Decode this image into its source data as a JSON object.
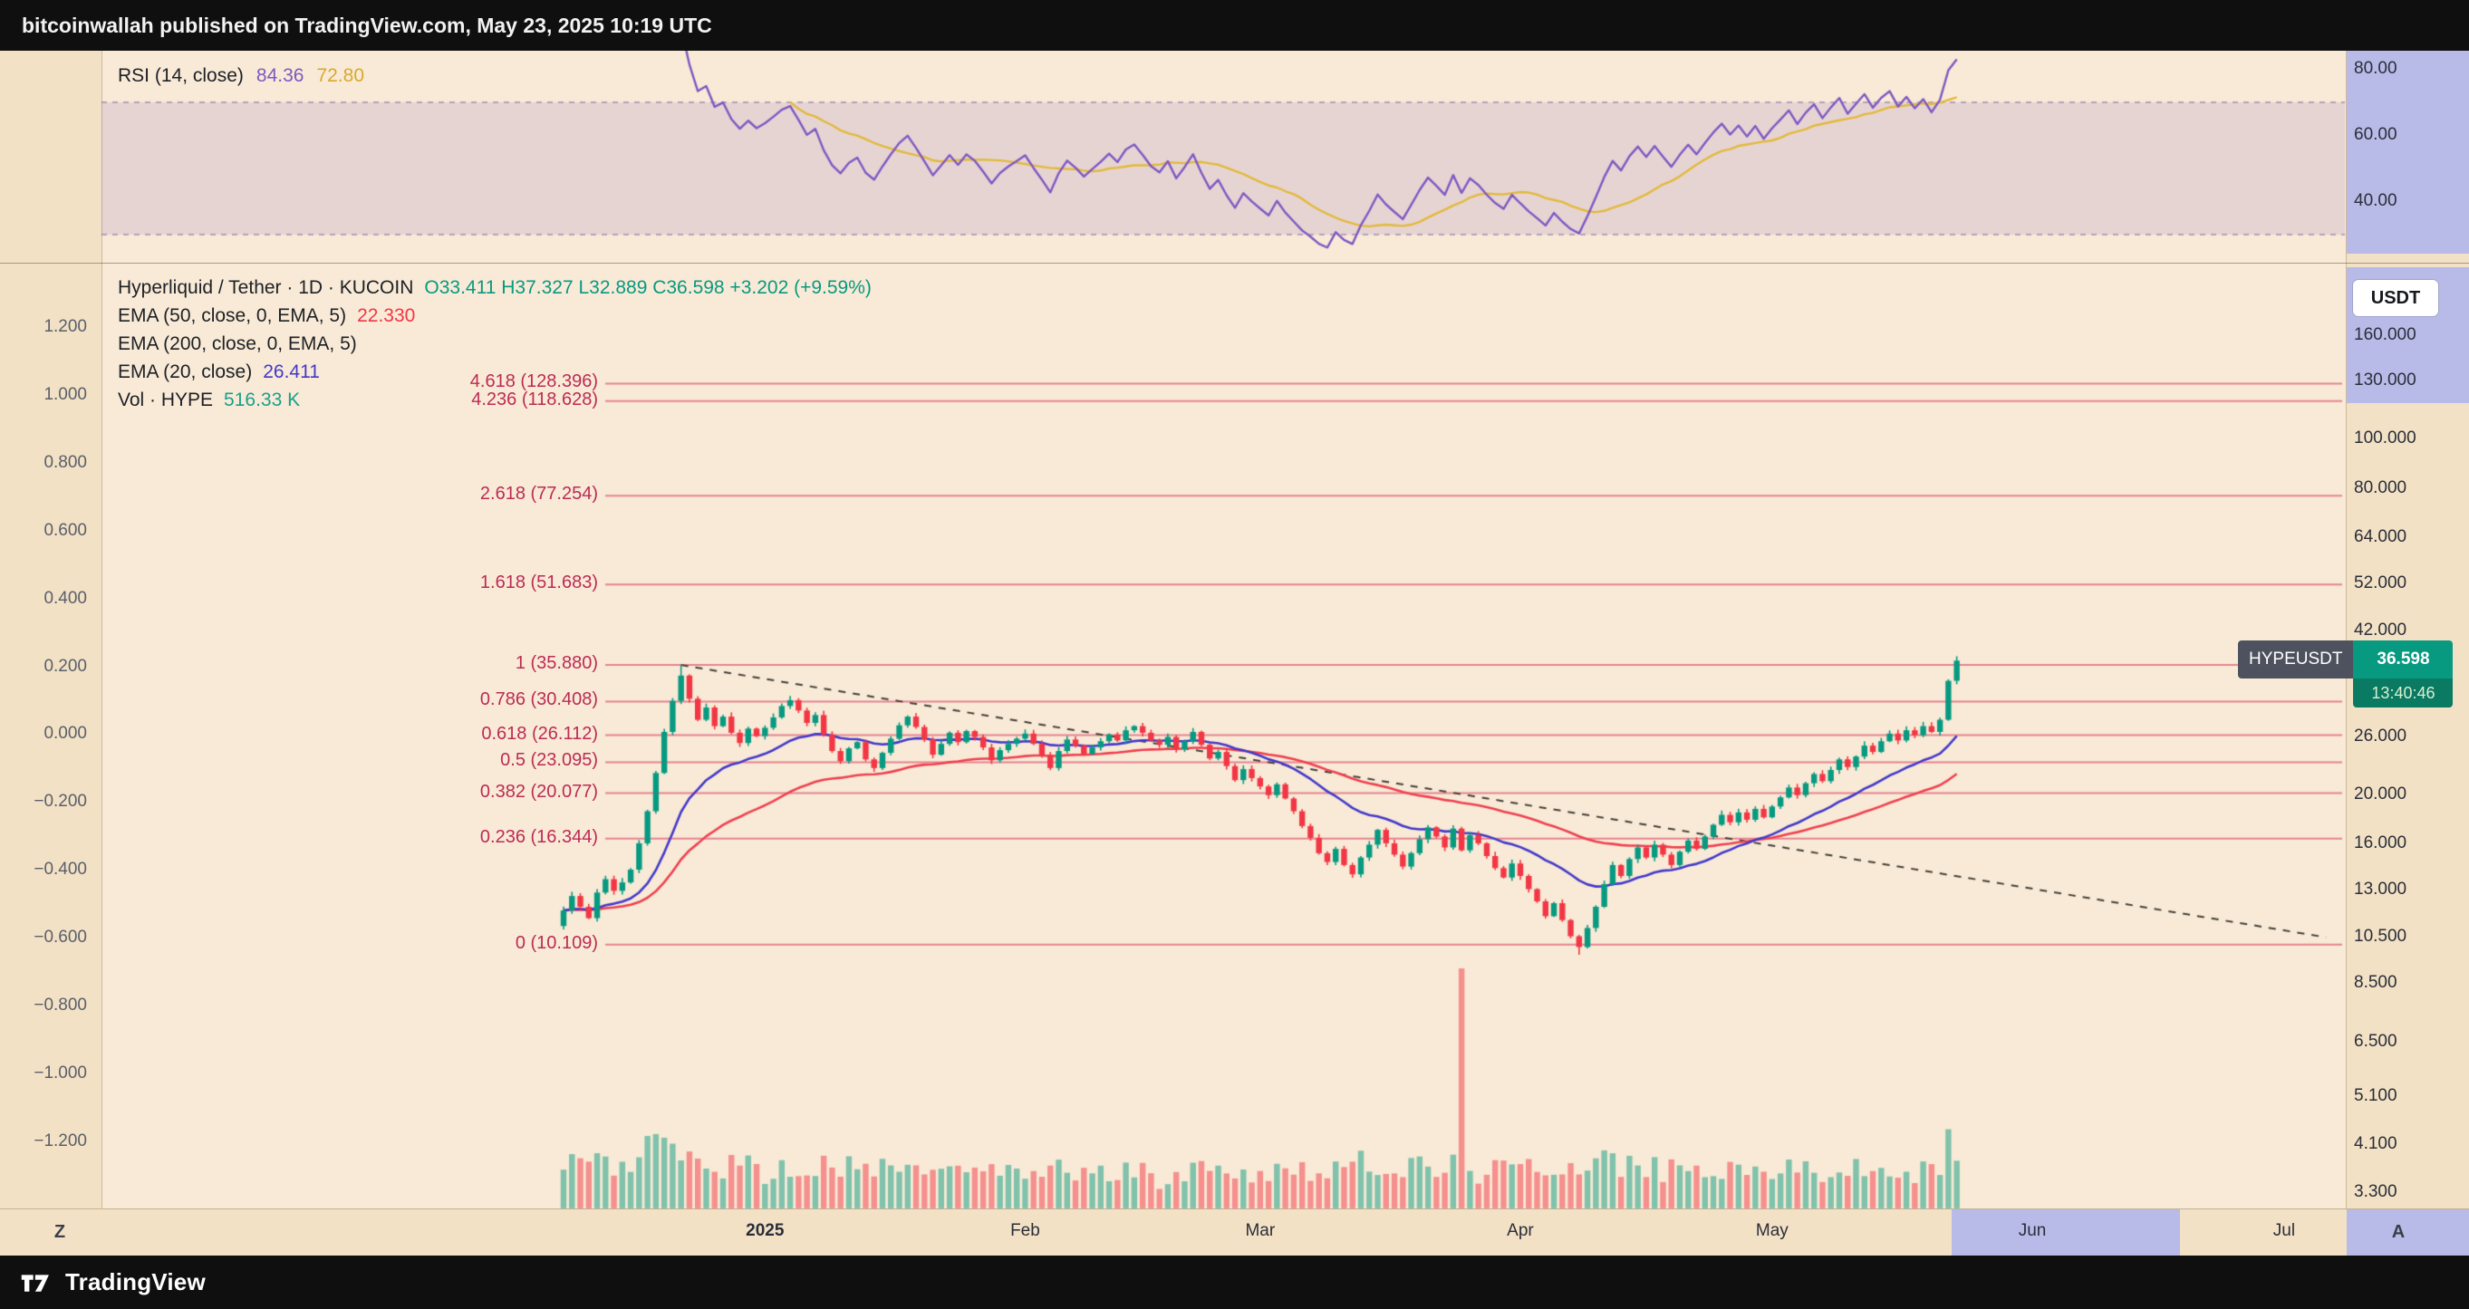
{
  "published_bar": {
    "text": "bitcoinwallah published on TradingView.com, May 23, 2025 10:19 UTC"
  },
  "footer": {
    "brand": "TradingView"
  },
  "rsi_pane": {
    "legend": {
      "title": "RSI (14, close)",
      "value": "84.36",
      "ma_value": "72.80"
    },
    "axis_labels": [
      {
        "text": "80.00",
        "value": 80
      },
      {
        "text": "60.00",
        "value": 60
      },
      {
        "text": "40.00",
        "value": 40
      }
    ]
  },
  "main_pane": {
    "legend": {
      "symbol_line": {
        "title": "Hyperliquid / Tether · 1D · KUCOIN",
        "ohlc": "O33.411 H37.327 L32.889 C36.598 +3.202 (+9.59%)"
      },
      "ema50": {
        "label": "EMA (50, close, 0, EMA, 5)",
        "value": "22.330"
      },
      "ema200": {
        "label": "EMA (200, close, 0, EMA, 5)",
        "value": ""
      },
      "ema20": {
        "label": "EMA (20, close)",
        "value": "26.411"
      },
      "vol": {
        "label": "Vol · HYPE",
        "value": "516.33 K"
      }
    },
    "currency_button": "USDT",
    "price_badge": {
      "symbol": "HYPEUSDT",
      "price": "36.598",
      "countdown": "13:40:46"
    },
    "right_axis_labels": [
      {
        "text": "160.000",
        "value": 160
      },
      {
        "text": "130.000",
        "value": 130
      },
      {
        "text": "100.000",
        "value": 100
      },
      {
        "text": "80.000",
        "value": 80
      },
      {
        "text": "64.000",
        "value": 64
      },
      {
        "text": "52.000",
        "value": 52
      },
      {
        "text": "42.000",
        "value": 42
      },
      {
        "text": "26.000",
        "value": 26
      },
      {
        "text": "20.000",
        "value": 20
      },
      {
        "text": "16.000",
        "value": 16
      },
      {
        "text": "13.000",
        "value": 13
      },
      {
        "text": "10.500",
        "value": 10.5
      },
      {
        "text": "8.500",
        "value": 8.5
      },
      {
        "text": "6.500",
        "value": 6.5
      },
      {
        "text": "5.100",
        "value": 5.1
      },
      {
        "text": "4.100",
        "value": 4.1
      },
      {
        "text": "3.300",
        "value": 3.3
      }
    ],
    "left_axis_labels": [
      "1.200",
      "1.000",
      "0.800",
      "0.600",
      "0.400",
      "0.200",
      "0.000",
      "−0.200",
      "−0.400",
      "−0.600",
      "−0.800",
      "−1.000",
      "−1.200"
    ],
    "fib_levels": [
      {
        "label": "4.618 (128.396)",
        "value": 128.396
      },
      {
        "label": "4.236 (118.628)",
        "value": 118.628
      },
      {
        "label": "2.618 (77.254)",
        "value": 77.254
      },
      {
        "label": "1.618 (51.683)",
        "value": 51.683
      },
      {
        "label": "1 (35.880)",
        "value": 35.88
      },
      {
        "label": "0.786 (30.408)",
        "value": 30.408
      },
      {
        "label": "0.618 (26.112)",
        "value": 26.112
      },
      {
        "label": "0.5 (23.095)",
        "value": 23.095
      },
      {
        "label": "0.382 (20.077)",
        "value": 20.077
      },
      {
        "label": "0.236 (16.344)",
        "value": 16.344
      },
      {
        "label": "0 (10.109)",
        "value": 10.109
      }
    ]
  },
  "time_axis": {
    "labels": [
      {
        "text": "2025",
        "index": 24,
        "bold": true
      },
      {
        "text": "Feb",
        "index": 55
      },
      {
        "text": "Mar",
        "index": 83
      },
      {
        "text": "Apr",
        "index": 114
      },
      {
        "text": "May",
        "index": 144
      },
      {
        "text": "Jun",
        "index": 175
      },
      {
        "text": "Jul",
        "index": 205
      }
    ],
    "z_button": "Z",
    "a_button": "A"
  },
  "chart_data": {
    "type": "candlestick+volume+rsi",
    "symbol": "HYPEUSDT",
    "exchange": "KUCOIN",
    "interval": "1D",
    "price_axis": {
      "type": "log",
      "range": [
        3.06,
        222
      ]
    },
    "rsi": {
      "period": 14,
      "band": [
        30,
        70
      ],
      "range": [
        21.5,
        85.6
      ],
      "current": 84.36,
      "ma_current": 72.8
    },
    "first_open": 11.0,
    "closes": [
      11.8,
      12.6,
      12.0,
      11.4,
      12.8,
      13.6,
      12.9,
      13.4,
      14.2,
      16.0,
      18.5,
      22.0,
      26.5,
      30.5,
      34.2,
      30.8,
      28.0,
      29.6,
      27.2,
      28.4,
      26.4,
      25.2,
      26.9,
      26.0,
      27.0,
      28.3,
      29.8,
      30.6,
      29.2,
      27.6,
      28.6,
      26.2,
      24.3,
      23.2,
      24.6,
      25.3,
      23.4,
      22.5,
      24.1,
      25.7,
      27.3,
      28.4,
      27.1,
      25.6,
      23.9,
      25.1,
      26.4,
      25.3,
      26.6,
      25.9,
      24.7,
      23.3,
      24.4,
      25.1,
      25.7,
      26.3,
      25.1,
      23.9,
      22.5,
      24.3,
      25.6,
      24.9,
      24.0,
      24.7,
      25.4,
      26.2,
      25.5,
      26.7,
      27.2,
      26.4,
      25.5,
      25.0,
      25.9,
      24.5,
      25.4,
      26.5,
      25.0,
      23.5,
      24.2,
      22.7,
      21.3,
      22.4,
      21.5,
      20.7,
      19.9,
      20.9,
      19.6,
      18.5,
      17.3,
      16.4,
      15.3,
      14.7,
      15.6,
      14.5,
      13.9,
      15.0,
      15.9,
      17.0,
      16.0,
      15.2,
      14.4,
      15.3,
      16.3,
      17.2,
      16.5,
      15.7,
      17.1,
      15.5,
      16.6,
      16.0,
      15.1,
      14.3,
      13.7,
      14.6,
      13.8,
      13.0,
      12.3,
      11.5,
      12.2,
      11.3,
      10.5,
      10.0,
      10.9,
      12.0,
      13.3,
      14.5,
      13.8,
      14.9,
      15.7,
      15.0,
      15.9,
      15.2,
      14.5,
      15.4,
      16.2,
      15.6,
      16.5,
      17.4,
      18.2,
      17.6,
      18.4,
      17.8,
      18.7,
      18.0,
      18.9,
      19.7,
      20.6,
      19.9,
      21.0,
      21.9,
      21.2,
      22.3,
      23.4,
      22.6,
      23.7,
      24.9,
      24.2,
      25.4,
      26.3,
      25.5,
      26.7,
      26.1,
      27.2,
      26.5,
      28.0,
      33.4,
      36.598
    ],
    "last_candle": {
      "o": 33.411,
      "h": 37.327,
      "l": 32.889,
      "c": 36.598
    },
    "peak": {
      "index": 14,
      "high": 35.88
    },
    "bottom": {
      "index": 121,
      "low": 9.65
    },
    "volume_overrides": {
      "107": 2600,
      "166": 516.33
    },
    "last_volume_label": "516.33 K",
    "trendline": {
      "from_index": 14,
      "from_price": 35.88,
      "to_index": 210,
      "to_price": 10.45,
      "style": "dashed"
    },
    "colors": {
      "up": "#089981",
      "down": "#f23645",
      "ema20": "#4338ca",
      "ema50": "#ef4050",
      "rsi": "#7e57c2",
      "rsi_ma": "#e2b93b",
      "fib": "rgba(219,77,109,0.65)"
    }
  }
}
